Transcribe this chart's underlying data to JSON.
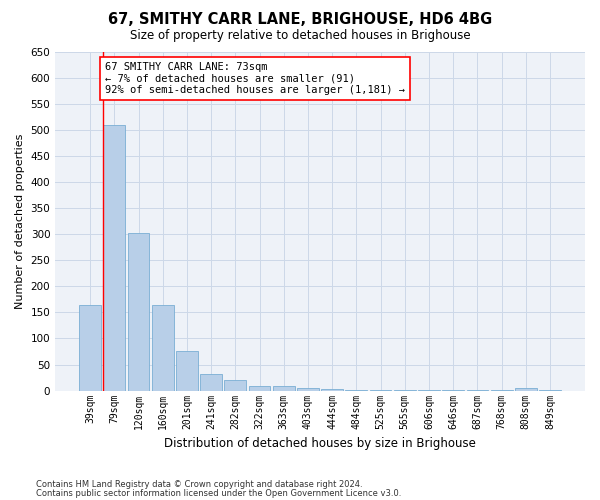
{
  "title": "67, SMITHY CARR LANE, BRIGHOUSE, HD6 4BG",
  "subtitle": "Size of property relative to detached houses in Brighouse",
  "xlabel": "Distribution of detached houses by size in Brighouse",
  "ylabel": "Number of detached properties",
  "bar_color": "#b8cfe8",
  "bar_edge_color": "#7aaed4",
  "categories": [
    "39sqm",
    "79sqm",
    "120sqm",
    "160sqm",
    "201sqm",
    "241sqm",
    "282sqm",
    "322sqm",
    "363sqm",
    "403sqm",
    "444sqm",
    "484sqm",
    "525sqm",
    "565sqm",
    "606sqm",
    "646sqm",
    "687sqm",
    "768sqm",
    "808sqm",
    "849sqm"
  ],
  "values": [
    165,
    510,
    302,
    165,
    76,
    31,
    20,
    8,
    8,
    5,
    3,
    2,
    2,
    2,
    2,
    2,
    2,
    2,
    5,
    2
  ],
  "ylim": [
    0,
    650
  ],
  "yticks": [
    0,
    50,
    100,
    150,
    200,
    250,
    300,
    350,
    400,
    450,
    500,
    550,
    600,
    650
  ],
  "annotation_line1": "67 SMITHY CARR LANE: 73sqm",
  "annotation_line2": "← 7% of detached houses are smaller (91)",
  "annotation_line3": "92% of semi-detached houses are larger (1,181) →",
  "footer_line1": "Contains HM Land Registry data © Crown copyright and database right 2024.",
  "footer_line2": "Contains public sector information licensed under the Open Government Licence v3.0.",
  "grid_color": "#ccd8e8",
  "background_color": "#eef2f8"
}
